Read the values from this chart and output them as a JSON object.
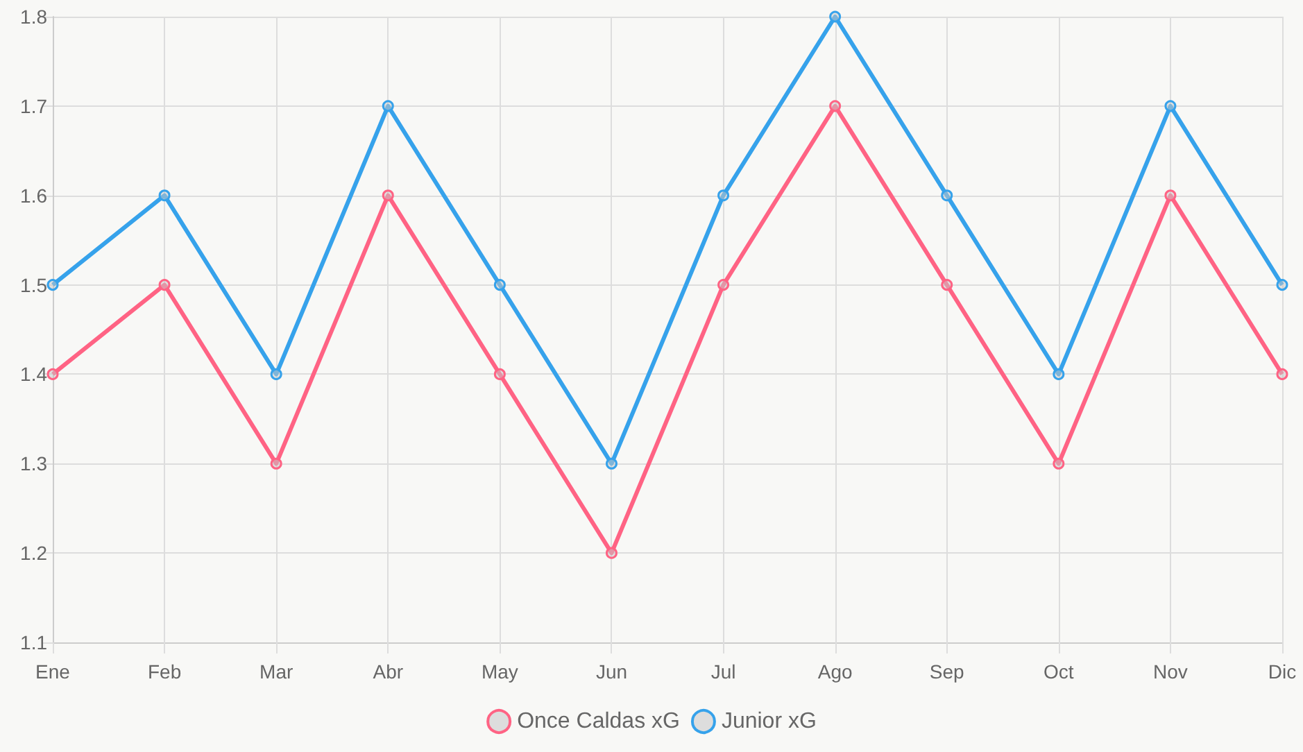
{
  "chart_data": {
    "type": "line",
    "categories": [
      "Ene",
      "Feb",
      "Mar",
      "Abr",
      "May",
      "Jun",
      "Jul",
      "Ago",
      "Sep",
      "Oct",
      "Nov",
      "Dic"
    ],
    "series": [
      {
        "name": "Once Caldas xG",
        "color": "#ff6384",
        "values": [
          1.4,
          1.5,
          1.3,
          1.6,
          1.4,
          1.2,
          1.5,
          1.7,
          1.5,
          1.3,
          1.6,
          1.4
        ]
      },
      {
        "name": "Junior xG",
        "color": "#36a2eb",
        "values": [
          1.5,
          1.6,
          1.4,
          1.7,
          1.5,
          1.3,
          1.6,
          1.8,
          1.6,
          1.4,
          1.7,
          1.5
        ]
      }
    ],
    "ylim": [
      1.1,
      1.8
    ],
    "yticks": [
      1.1,
      1.2,
      1.3,
      1.4,
      1.5,
      1.6,
      1.7,
      1.8
    ],
    "grid": true,
    "legend": "bottom",
    "marker": "circle",
    "line_style": "solid"
  }
}
